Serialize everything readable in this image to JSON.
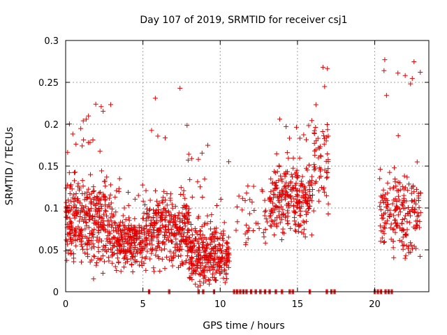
{
  "chart_data": {
    "type": "scatter",
    "title": "Day 107 of 2019, SRMTID for receiver csj1",
    "xlabel": "GPS time / hours",
    "ylabel": "SRMTID / TECUs",
    "xlim": [
      0,
      23.5
    ],
    "ylim": [
      0,
      0.3
    ],
    "xticks": [
      0,
      5,
      10,
      15,
      20
    ],
    "yticks": [
      0,
      0.05,
      0.1,
      0.15,
      0.2,
      0.25,
      0.3
    ],
    "ytick_labels": [
      "0",
      "0.05",
      "0.1",
      "0.15",
      "0.2",
      "0.25",
      "0.3"
    ],
    "grid": true,
    "marker": "plus",
    "color": "#e00000",
    "segments": [
      {
        "x0": 0.0,
        "x1": 3.0,
        "center": 0.085,
        "spread": 0.075,
        "max": 0.225,
        "density": 120
      },
      {
        "x0": 3.0,
        "x1": 5.0,
        "center": 0.06,
        "spread": 0.05,
        "max": 0.14,
        "density": 110
      },
      {
        "x0": 5.0,
        "x1": 8.0,
        "center": 0.075,
        "spread": 0.065,
        "max": 0.2,
        "density": 110
      },
      {
        "x0": 8.0,
        "x1": 10.6,
        "center": 0.045,
        "spread": 0.05,
        "max": 0.175,
        "density": 120
      },
      {
        "x0": 11.0,
        "x1": 13.2,
        "center": 0.085,
        "spread": 0.06,
        "max": 0.16,
        "density": 18
      },
      {
        "x0": 13.2,
        "x1": 16.0,
        "center": 0.11,
        "spread": 0.06,
        "max": 0.205,
        "density": 95
      },
      {
        "x0": 16.0,
        "x1": 17.0,
        "center": 0.14,
        "spread": 0.085,
        "max": 0.27,
        "density": 60
      },
      {
        "x0": 20.3,
        "x1": 23.0,
        "center": 0.095,
        "spread": 0.075,
        "max": 0.277,
        "density": 75
      }
    ],
    "highlights": [
      {
        "x": 7.4,
        "y": 0.243
      },
      {
        "x": 5.8,
        "y": 0.231
      },
      {
        "x": 16.65,
        "y": 0.268
      },
      {
        "x": 20.65,
        "y": 0.277
      },
      {
        "x": 20.6,
        "y": 0.264
      },
      {
        "x": 21.5,
        "y": 0.261
      },
      {
        "x": 1.95,
        "y": 0.224
      },
      {
        "x": 2.3,
        "y": 0.221
      },
      {
        "x": 13.85,
        "y": 0.206
      }
    ],
    "zero_points_x": [
      5.4,
      6.7,
      8.6,
      8.9,
      9.6,
      10.9,
      11.1,
      11.3,
      11.5,
      11.7,
      12.0,
      12.3,
      12.6,
      12.9,
      13.2,
      13.6,
      14.0,
      14.5,
      14.7,
      15.8,
      16.9,
      17.2,
      17.4,
      20.0,
      20.2,
      20.4,
      20.7,
      20.9,
      21.1
    ]
  }
}
